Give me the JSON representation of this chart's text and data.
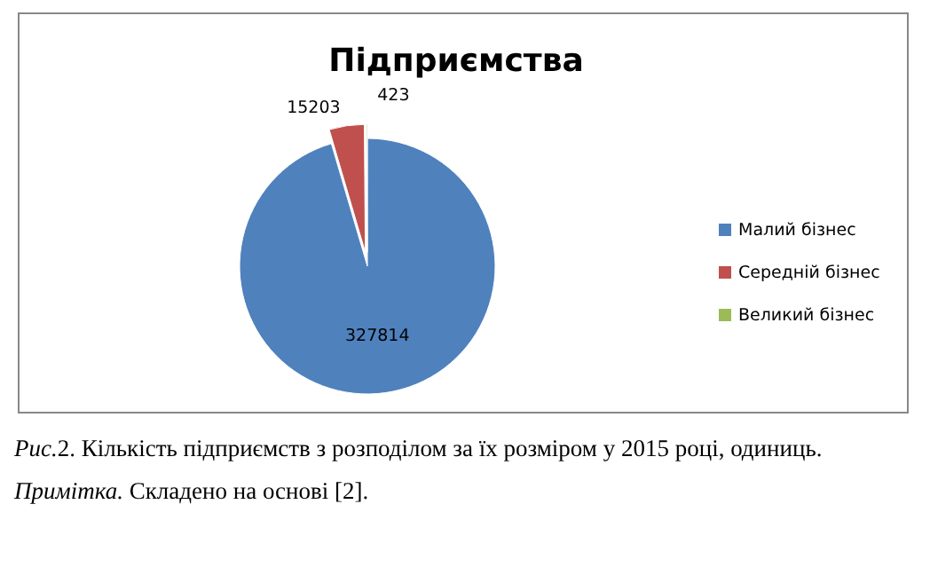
{
  "chart_data": {
    "type": "pie",
    "title": "Підприємства",
    "categories": [
      "Малий бізнес",
      "Середній бізнес",
      "Великий бізнес"
    ],
    "values": [
      327814,
      15203,
      423
    ],
    "colors": [
      "#4f81bd",
      "#c0504d",
      "#9bbb59"
    ],
    "data_labels": true,
    "legend": "right",
    "annotations": [
      "Рис.2. Кількість підприємств з розподілом за їх розміром у 2015 році, одиниць.",
      "Примітка. Складено на основі [2]."
    ]
  }
}
